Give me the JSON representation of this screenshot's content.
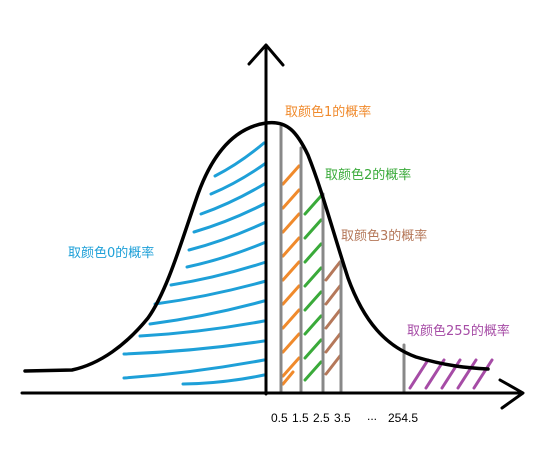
{
  "labels": {
    "color0": "取颜色0的概率",
    "color1": "取颜色1的概率",
    "color2": "取颜色2的概率",
    "color3": "取颜色3的概率",
    "color255": "取颜色255的概率"
  },
  "ticks": [
    "0.5",
    "1.5",
    "2.5",
    "3.5",
    "...",
    "254.5"
  ],
  "colors": {
    "color0": "#1ea0d8",
    "color1": "#f08a2c",
    "color2": "#3aaa3a",
    "color3": "#b5785a",
    "color255": "#a64ca6",
    "curve": "#000000",
    "divider": "#888888"
  }
}
